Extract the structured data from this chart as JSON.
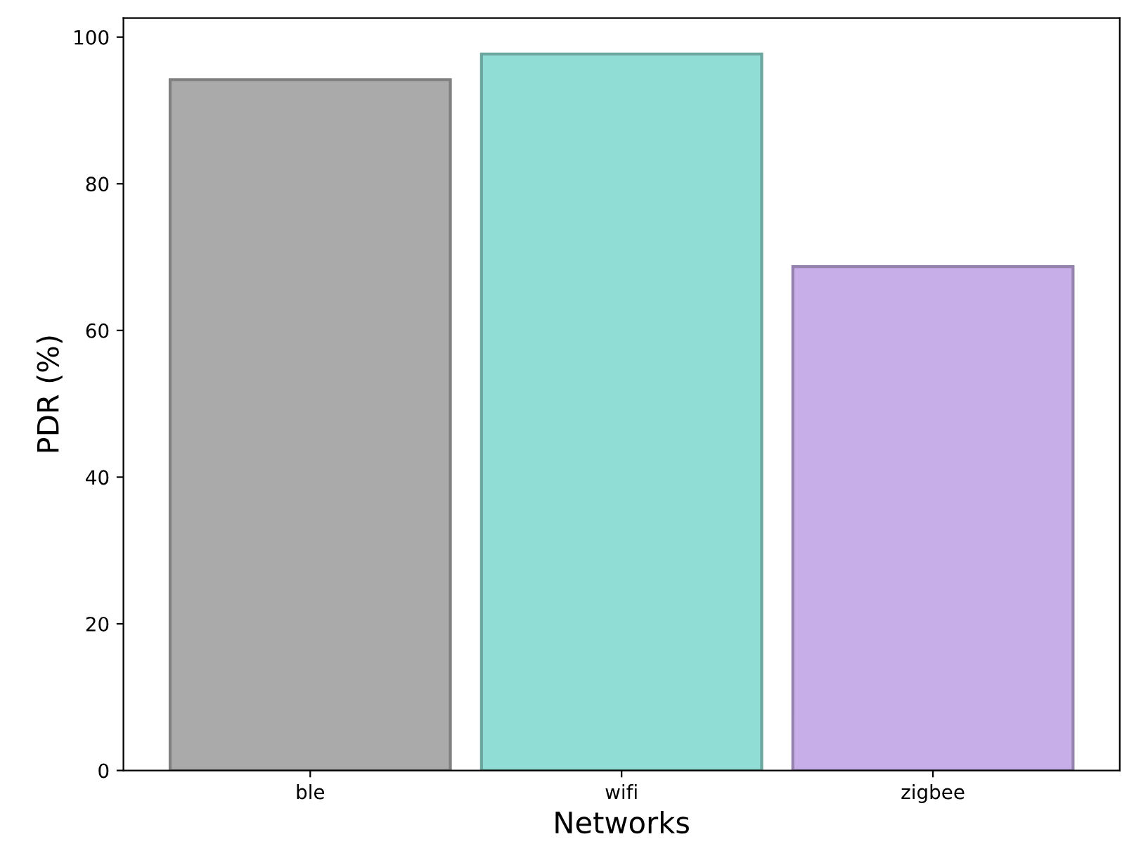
{
  "chart_data": {
    "type": "bar",
    "xlabel": "Networks",
    "ylabel": "PDR (%)",
    "categories": [
      "ble",
      "wifi",
      "zigbee"
    ],
    "values": [
      94.2,
      97.7,
      68.7
    ],
    "colors": [
      "#aaaaaa",
      "#8fddd4",
      "#c8aee9"
    ],
    "ylim": [
      0,
      102.6
    ],
    "yticks": [
      0,
      20,
      40,
      60,
      80,
      100
    ],
    "grid": false,
    "legend": false
  }
}
